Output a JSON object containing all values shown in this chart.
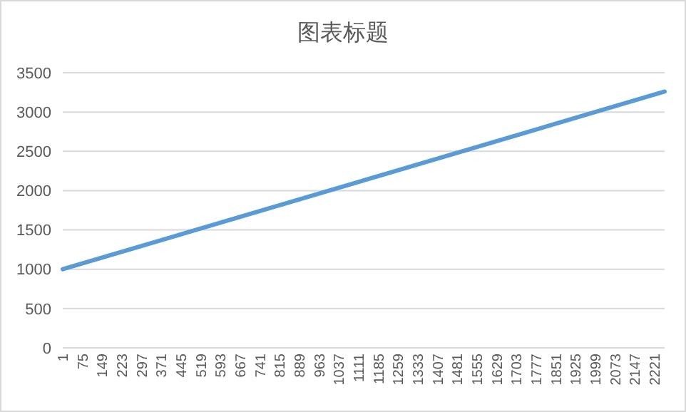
{
  "chart_data": {
    "type": "line",
    "title": "图表标题",
    "x": [
      1,
      2258
    ],
    "series": [
      {
        "color": "#5b9bd5",
        "values": [
          1000,
          3260
        ]
      }
    ],
    "xlim": [
      1,
      2258
    ],
    "xticks": [
      1,
      75,
      149,
      223,
      297,
      371,
      445,
      519,
      593,
      667,
      741,
      815,
      889,
      963,
      1037,
      1111,
      1185,
      1259,
      1333,
      1407,
      1481,
      1555,
      1629,
      1703,
      1777,
      1851,
      1925,
      1999,
      2073,
      2147,
      2221
    ],
    "ylim": [
      0,
      3500
    ],
    "yticks": [
      0,
      500,
      1000,
      1500,
      2000,
      2500,
      3000,
      3500
    ],
    "grid": "y"
  }
}
